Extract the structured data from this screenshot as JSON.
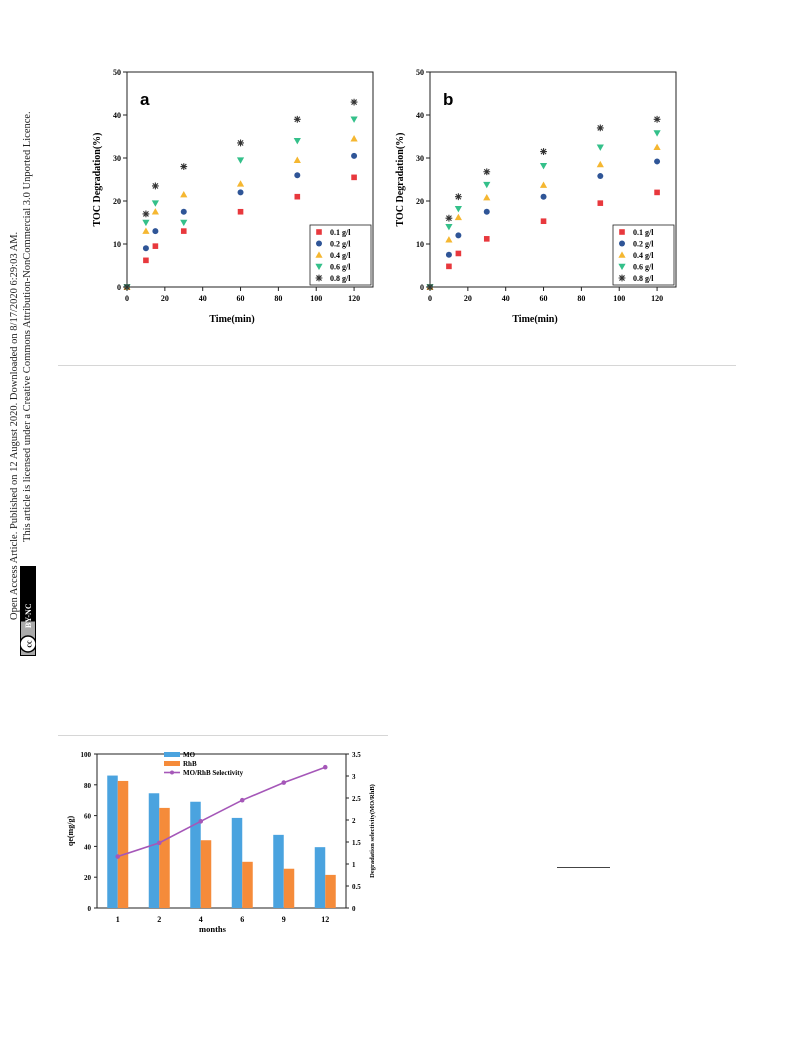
{
  "sidebar": {
    "line1": "Open Access Article. Published on 12 August 2020. Downloaded on 8/17/2020 6:29:03 AM.",
    "line2": "This article is licensed under a Creative Commons Attribution-NonCommercial 3.0 Unported Licence.",
    "badge_cc": "cc",
    "badge_text": "BY-NC"
  },
  "chart_data": [
    {
      "type": "scatter",
      "panel": "a",
      "xlabel": "Time(min)",
      "ylabel": "TOC Degradation(%)",
      "xlim": [
        0,
        130
      ],
      "ylim": [
        0,
        50
      ],
      "xticks": [
        0,
        20,
        40,
        60,
        80,
        100,
        120
      ],
      "yticks": [
        0,
        10,
        20,
        30,
        40,
        50
      ],
      "legend_position": "bottom-right",
      "x": [
        0,
        10,
        15,
        30,
        60,
        90,
        120
      ],
      "series": [
        {
          "name": "0.1 g/l",
          "color": "#e8383d",
          "marker": "square",
          "values": [
            0,
            6.2,
            9.5,
            13.0,
            17.5,
            21.0,
            25.5
          ]
        },
        {
          "name": "0.2 g/l",
          "color": "#2f5597",
          "marker": "circle",
          "values": [
            0,
            9.0,
            13.0,
            17.5,
            22.0,
            26.0,
            30.5
          ]
        },
        {
          "name": "0.4 g/l",
          "color": "#f5b731",
          "marker": "triangle-up",
          "values": [
            0,
            13.0,
            17.5,
            21.5,
            24.0,
            29.5,
            34.5
          ]
        },
        {
          "name": "0.6 g/l",
          "color": "#34c08a",
          "marker": "triangle-down",
          "values": [
            0,
            15.0,
            19.5,
            15.0,
            29.5,
            34.0,
            39.0
          ]
        },
        {
          "name": "0.8 g/l",
          "color": "#333333",
          "marker": "star",
          "values": [
            0,
            17.0,
            23.5,
            28.0,
            33.5,
            39.0,
            43.0
          ]
        }
      ]
    },
    {
      "type": "scatter",
      "panel": "b",
      "xlabel": "Time(min)",
      "ylabel": "TOC Degradation(%)",
      "xlim": [
        0,
        130
      ],
      "ylim": [
        0,
        50
      ],
      "xticks": [
        0,
        20,
        40,
        60,
        80,
        100,
        120
      ],
      "yticks": [
        0,
        10,
        20,
        30,
        40,
        50
      ],
      "legend_position": "bottom-right",
      "x": [
        0,
        10,
        15,
        30,
        60,
        90,
        120
      ],
      "series": [
        {
          "name": "0.1 g/l",
          "color": "#e8383d",
          "marker": "square",
          "values": [
            0,
            4.8,
            7.8,
            11.2,
            15.3,
            19.5,
            22.0
          ]
        },
        {
          "name": "0.2 g/l",
          "color": "#2f5597",
          "marker": "circle",
          "values": [
            0,
            7.5,
            12.0,
            17.5,
            21.0,
            25.8,
            29.2
          ]
        },
        {
          "name": "0.4 g/l",
          "color": "#f5b731",
          "marker": "triangle-up",
          "values": [
            0,
            11.0,
            16.2,
            20.8,
            23.7,
            28.5,
            32.5
          ]
        },
        {
          "name": "0.6 g/l",
          "color": "#34c08a",
          "marker": "triangle-down",
          "values": [
            0,
            14.0,
            18.2,
            23.8,
            28.2,
            32.5,
            35.8
          ]
        },
        {
          "name": "0.8 g/l",
          "color": "#333333",
          "marker": "star",
          "values": [
            0,
            16.0,
            21.0,
            26.8,
            31.5,
            37.0,
            39.0
          ]
        }
      ]
    },
    {
      "type": "bar",
      "xlabel": "months",
      "ylabel": "qe(mg/g)",
      "ylabel_right": "Degradation selectivity(MO/RhB)",
      "categories": [
        "1",
        "2",
        "4",
        "6",
        "9",
        "12"
      ],
      "ylim": [
        0,
        100
      ],
      "yticks": [
        0,
        20,
        40,
        60,
        80,
        100
      ],
      "ylim_right": [
        0,
        3.5
      ],
      "yticks_right": [
        "0",
        "0.5",
        "1",
        "1.5",
        "2",
        "2.5",
        "3",
        "3.5"
      ],
      "legend_position": "top-center",
      "series": [
        {
          "name": "MO",
          "type": "bar",
          "color": "#4aa3df",
          "values": [
            86,
            74.5,
            69,
            58.5,
            47.5,
            39.5
          ]
        },
        {
          "name": "RhB",
          "type": "bar",
          "color": "#f58b3a",
          "values": [
            82.5,
            65,
            44,
            30,
            25.5,
            21.5
          ]
        },
        {
          "name": "MO/RhB Selectivity",
          "type": "line",
          "axis": "right",
          "color": "#a557b8",
          "values": [
            1.17,
            1.48,
            1.97,
            2.45,
            2.85,
            3.2
          ]
        }
      ]
    }
  ]
}
